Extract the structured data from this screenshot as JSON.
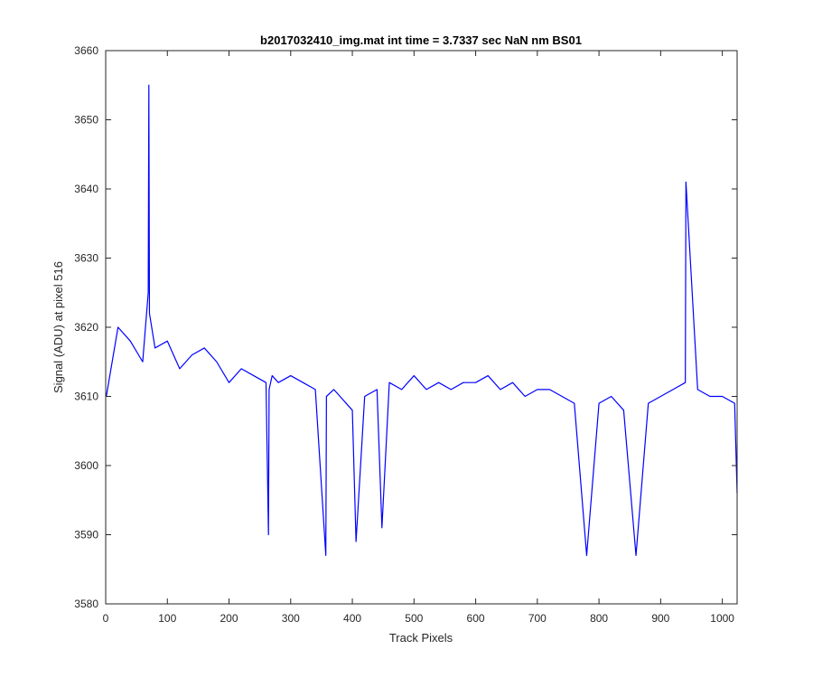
{
  "chart_data": {
    "type": "line",
    "title": "b2017032410_img.mat int time = 3.7337 sec  NaN nm BS01",
    "xlabel": "Track Pixels",
    "ylabel": "Signal (ADU) at pixel 516",
    "xlim": [
      0,
      1024
    ],
    "ylim": [
      3580,
      3660
    ],
    "xticks": [
      0,
      100,
      200,
      300,
      400,
      500,
      600,
      700,
      800,
      900,
      1000
    ],
    "yticks": [
      3580,
      3590,
      3600,
      3610,
      3620,
      3630,
      3640,
      3650,
      3660
    ],
    "grid": false,
    "legend": "none",
    "series": [
      {
        "color": "#0000ff",
        "x": [
          1,
          20,
          40,
          60,
          69,
          70,
          71,
          80,
          100,
          120,
          140,
          160,
          180,
          200,
          220,
          240,
          260,
          264,
          265,
          270,
          280,
          300,
          320,
          340,
          357,
          358,
          370,
          380,
          400,
          406,
          420,
          440,
          448,
          460,
          480,
          500,
          520,
          540,
          560,
          580,
          600,
          620,
          640,
          660,
          680,
          700,
          720,
          740,
          760,
          780,
          800,
          820,
          840,
          860,
          880,
          900,
          920,
          940,
          941,
          960,
          980,
          1000,
          1020,
          1024
        ],
        "y": [
          3610,
          3620,
          3618,
          3615,
          3625,
          3655,
          3622,
          3617,
          3618,
          3614,
          3616,
          3617,
          3615,
          3612,
          3614,
          3613,
          3612,
          3590,
          3611,
          3613,
          3612,
          3613,
          3612,
          3611,
          3587,
          3610,
          3611,
          3610,
          3608,
          3589,
          3610,
          3611,
          3591,
          3612,
          3611,
          3613,
          3611,
          3612,
          3611,
          3612,
          3612,
          3613,
          3611,
          3612,
          3610,
          3611,
          3611,
          3610,
          3609,
          3587,
          3609,
          3610,
          3608,
          3587,
          3609,
          3610,
          3611,
          3612,
          3641,
          3611,
          3610,
          3610,
          3609,
          3596
        ]
      }
    ]
  }
}
